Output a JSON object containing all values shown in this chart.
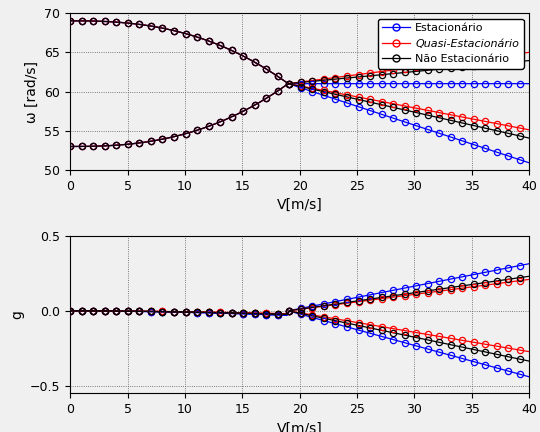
{
  "V_max": 40,
  "V_min": 0,
  "omega_ylim": [
    50,
    70
  ],
  "omega_yticks": [
    50,
    55,
    60,
    65,
    70
  ],
  "g_ylim": [
    -0.55,
    0.5
  ],
  "g_yticks": [
    -0.5,
    0,
    0.5
  ],
  "xlabel": "V[m/s]",
  "ylabel_top": "ω [rad/s]",
  "ylabel_bottom": "g",
  "legend_labels": [
    "Estacionário",
    "Quasi-Estacionário",
    "Não Estacionário"
  ],
  "colors": [
    "blue",
    "red",
    "black"
  ],
  "omega_high": 69.0,
  "omega_low": 53.0,
  "flutter_speed": 19.0,
  "n_points": 200,
  "marker_every": 5,
  "bg_color": "#f0f0f0"
}
